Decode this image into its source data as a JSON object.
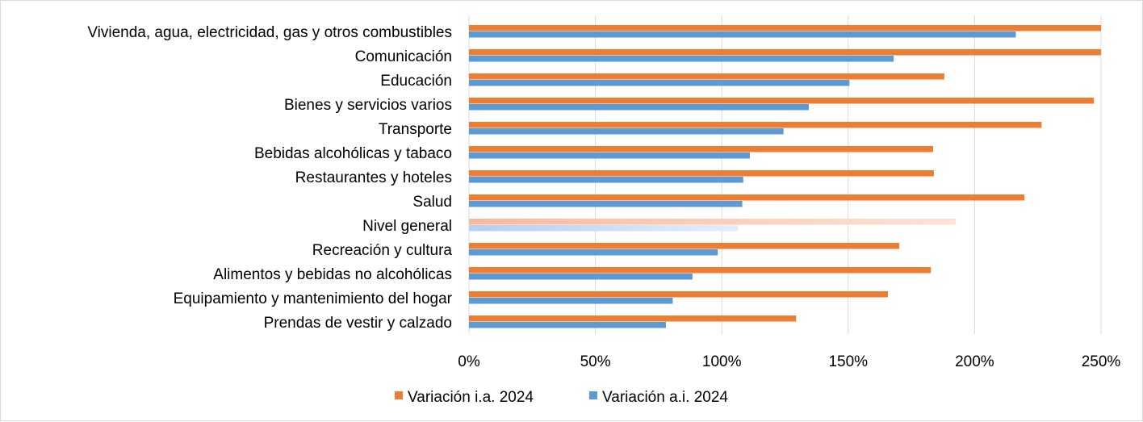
{
  "chart_data": {
    "type": "bar",
    "orientation": "horizontal",
    "title": "",
    "xlabel": "",
    "ylabel": "",
    "categories": [
      "Vivienda, agua, electricidad, gas y otros combustibles",
      "Comunicación",
      "Educación",
      "Bienes y servicios varios",
      "Transporte",
      "Bebidas alcohólicas y tabaco",
      "Restaurantes y hoteles",
      "Salud",
      "Nivel general",
      "Recreación y cultura",
      "Alimentos y bebidas no alcohólicas",
      "Equipamiento y mantenimiento del hogar",
      "Prendas de vestir y calzado"
    ],
    "highlighted_category": "Nivel general",
    "series": [
      {
        "name": "Variación i.a. 2024",
        "color": "#ed7d31",
        "values": [
          250,
          250,
          188,
          247.2,
          226.5,
          183.6,
          183.9,
          219.7,
          192.6,
          170.2,
          182.7,
          165.7,
          129.4
        ]
      },
      {
        "name": "Variación a.i. 2024",
        "color": "#5b9bd5",
        "values": [
          216.3,
          168,
          150.5,
          134.4,
          124.4,
          111.1,
          108.5,
          108.1,
          106.4,
          98.4,
          88.4,
          80.6,
          77.9
        ]
      }
    ],
    "xlim": [
      0,
      250
    ],
    "xticks": [
      0,
      50,
      100,
      150,
      200,
      250
    ],
    "xtick_labels": [
      "0%",
      "50%",
      "100%",
      "150%",
      "200%",
      "250%"
    ],
    "grid": true,
    "legend_position": "bottom"
  }
}
